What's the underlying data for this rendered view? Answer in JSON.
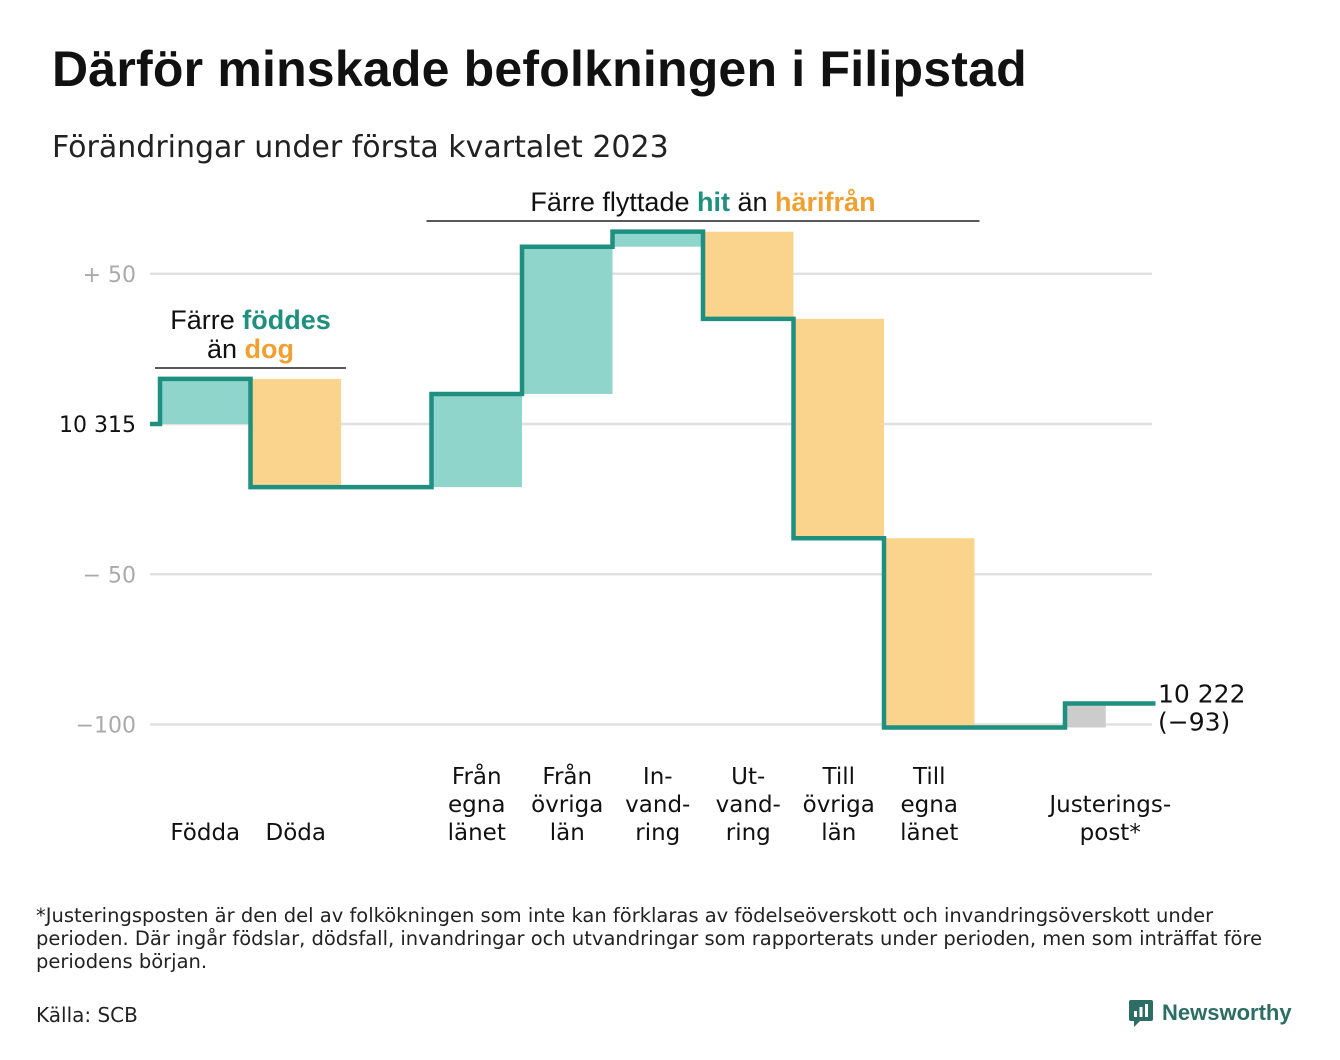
{
  "title": "Därför minskade befolkningen i Filipstad",
  "subtitle": "Förändringar under första kvartalet 2023",
  "colors": {
    "increase_fill": "#8fd5cb",
    "decrease_fill": "#fad48c",
    "adjustment_fill": "#cccccc",
    "line": "#1f8f7f",
    "teal_text": "#1f8f7f",
    "orange_text": "#f0a030",
    "grid": "#e0e0e0",
    "tick_text": "#aaaaaa"
  },
  "chart_data": {
    "type": "waterfall",
    "start_label": "10 315",
    "start_value": 10315,
    "end_label": "10 222",
    "end_change_label": "(−93)",
    "end_value": 10222,
    "ylim": [
      -108,
      68
    ],
    "y_ticks": [
      {
        "value": 50,
        "label": "+ 50"
      },
      {
        "value": 0,
        "label": "10 315"
      },
      {
        "value": -50,
        "label": "− 50"
      },
      {
        "value": -100,
        "label": "−100"
      }
    ],
    "steps": [
      {
        "label": [
          "Födda"
        ],
        "delta": 15,
        "kind": "increase"
      },
      {
        "label": [
          "Döda"
        ],
        "delta": -36,
        "kind": "decrease"
      },
      {
        "label": [],
        "delta": 0,
        "kind": "none"
      },
      {
        "label": [
          "Från",
          "egna",
          "länet"
        ],
        "delta": 31,
        "kind": "increase"
      },
      {
        "label": [
          "Från",
          "övriga",
          "län"
        ],
        "delta": 49,
        "kind": "increase"
      },
      {
        "label": [
          "In-",
          "vand-",
          "ring"
        ],
        "delta": 5,
        "kind": "increase"
      },
      {
        "label": [
          "Ut-",
          "vand-",
          "ring"
        ],
        "delta": -29,
        "kind": "decrease"
      },
      {
        "label": [
          "Till",
          "övriga",
          "län"
        ],
        "delta": -73,
        "kind": "decrease"
      },
      {
        "label": [
          "Till",
          "egna",
          "länet"
        ],
        "delta": -63,
        "kind": "decrease"
      },
      {
        "label": [],
        "delta": 0,
        "kind": "none"
      },
      {
        "label": [
          "Justerings-",
          "post*"
        ],
        "delta": 8,
        "kind": "adjustment"
      }
    ],
    "annotations": [
      {
        "id": "births",
        "lines": [
          [
            {
              "text": "Färre ",
              "style": "plain"
            },
            {
              "text": "föddes",
              "style": "teal"
            }
          ],
          [
            {
              "text": "än ",
              "style": "plain"
            },
            {
              "text": "dog",
              "style": "orange"
            }
          ]
        ],
        "span_from": 0,
        "span_to": 1
      },
      {
        "id": "migration",
        "lines": [
          [
            {
              "text": "Färre flyttade ",
              "style": "plain"
            },
            {
              "text": "hit",
              "style": "teal"
            },
            {
              "text": " än ",
              "style": "plain"
            },
            {
              "text": "härifrån",
              "style": "orange"
            }
          ]
        ],
        "span_from": 3,
        "span_to": 8
      }
    ]
  },
  "footnote": "*Justeringsposten är den del av folkökningen som inte kan förklaras av födelseöverskott och invandringsöverskott under perioden. Där ingår födslar, dödsfall, invandringar och utvandringar som rapporterats under perioden, men som inträffat före periodens början.",
  "source": "Källa: SCB",
  "brand": {
    "name": "Newsworthy",
    "icon": "newsworthy-logo-icon"
  }
}
